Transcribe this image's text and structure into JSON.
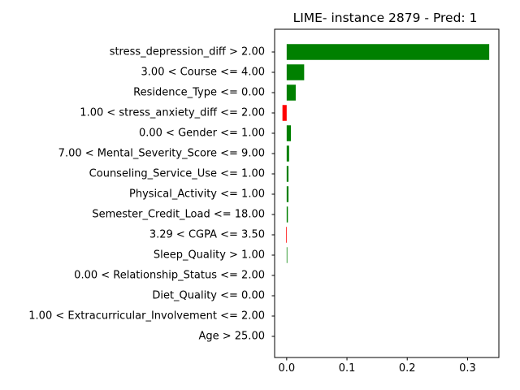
{
  "chart_data": {
    "type": "bar",
    "orientation": "horizontal",
    "title": "LIME- instance 2879 - Pred: 1",
    "xlabel": "",
    "ylabel": "",
    "xlim": [
      -0.02,
      0.352
    ],
    "xticks": [
      0.0,
      0.1,
      0.2,
      0.3
    ],
    "xtick_labels": [
      "0.0",
      "0.1",
      "0.2",
      "0.3"
    ],
    "grid": false,
    "colors": {
      "positive": "#008000",
      "negative": "#ff0000"
    },
    "categories": [
      "stress_depression_diff > 2.00",
      "3.00 < Course <= 4.00",
      "Residence_Type <= 0.00",
      "1.00 < stress_anxiety_diff <= 2.00",
      "0.00 < Gender <= 1.00",
      "7.00 < Mental_Severity_Score <= 9.00",
      "Counseling_Service_Use <= 1.00",
      "Physical_Activity <= 1.00",
      "Semester_Credit_Load <= 18.00",
      "3.29 < CGPA <= 3.50",
      "Sleep_Quality > 1.00",
      "0.00 < Relationship_Status <= 2.00",
      "Diet_Quality <= 0.00",
      "1.00 < Extracurricular_Involvement <= 2.00",
      "Age > 25.00"
    ],
    "values": [
      0.336,
      0.029,
      0.015,
      -0.007,
      0.007,
      0.004,
      0.003,
      0.003,
      0.002,
      -0.001,
      0.001,
      0.0,
      0.0,
      0.0,
      0.0
    ]
  }
}
